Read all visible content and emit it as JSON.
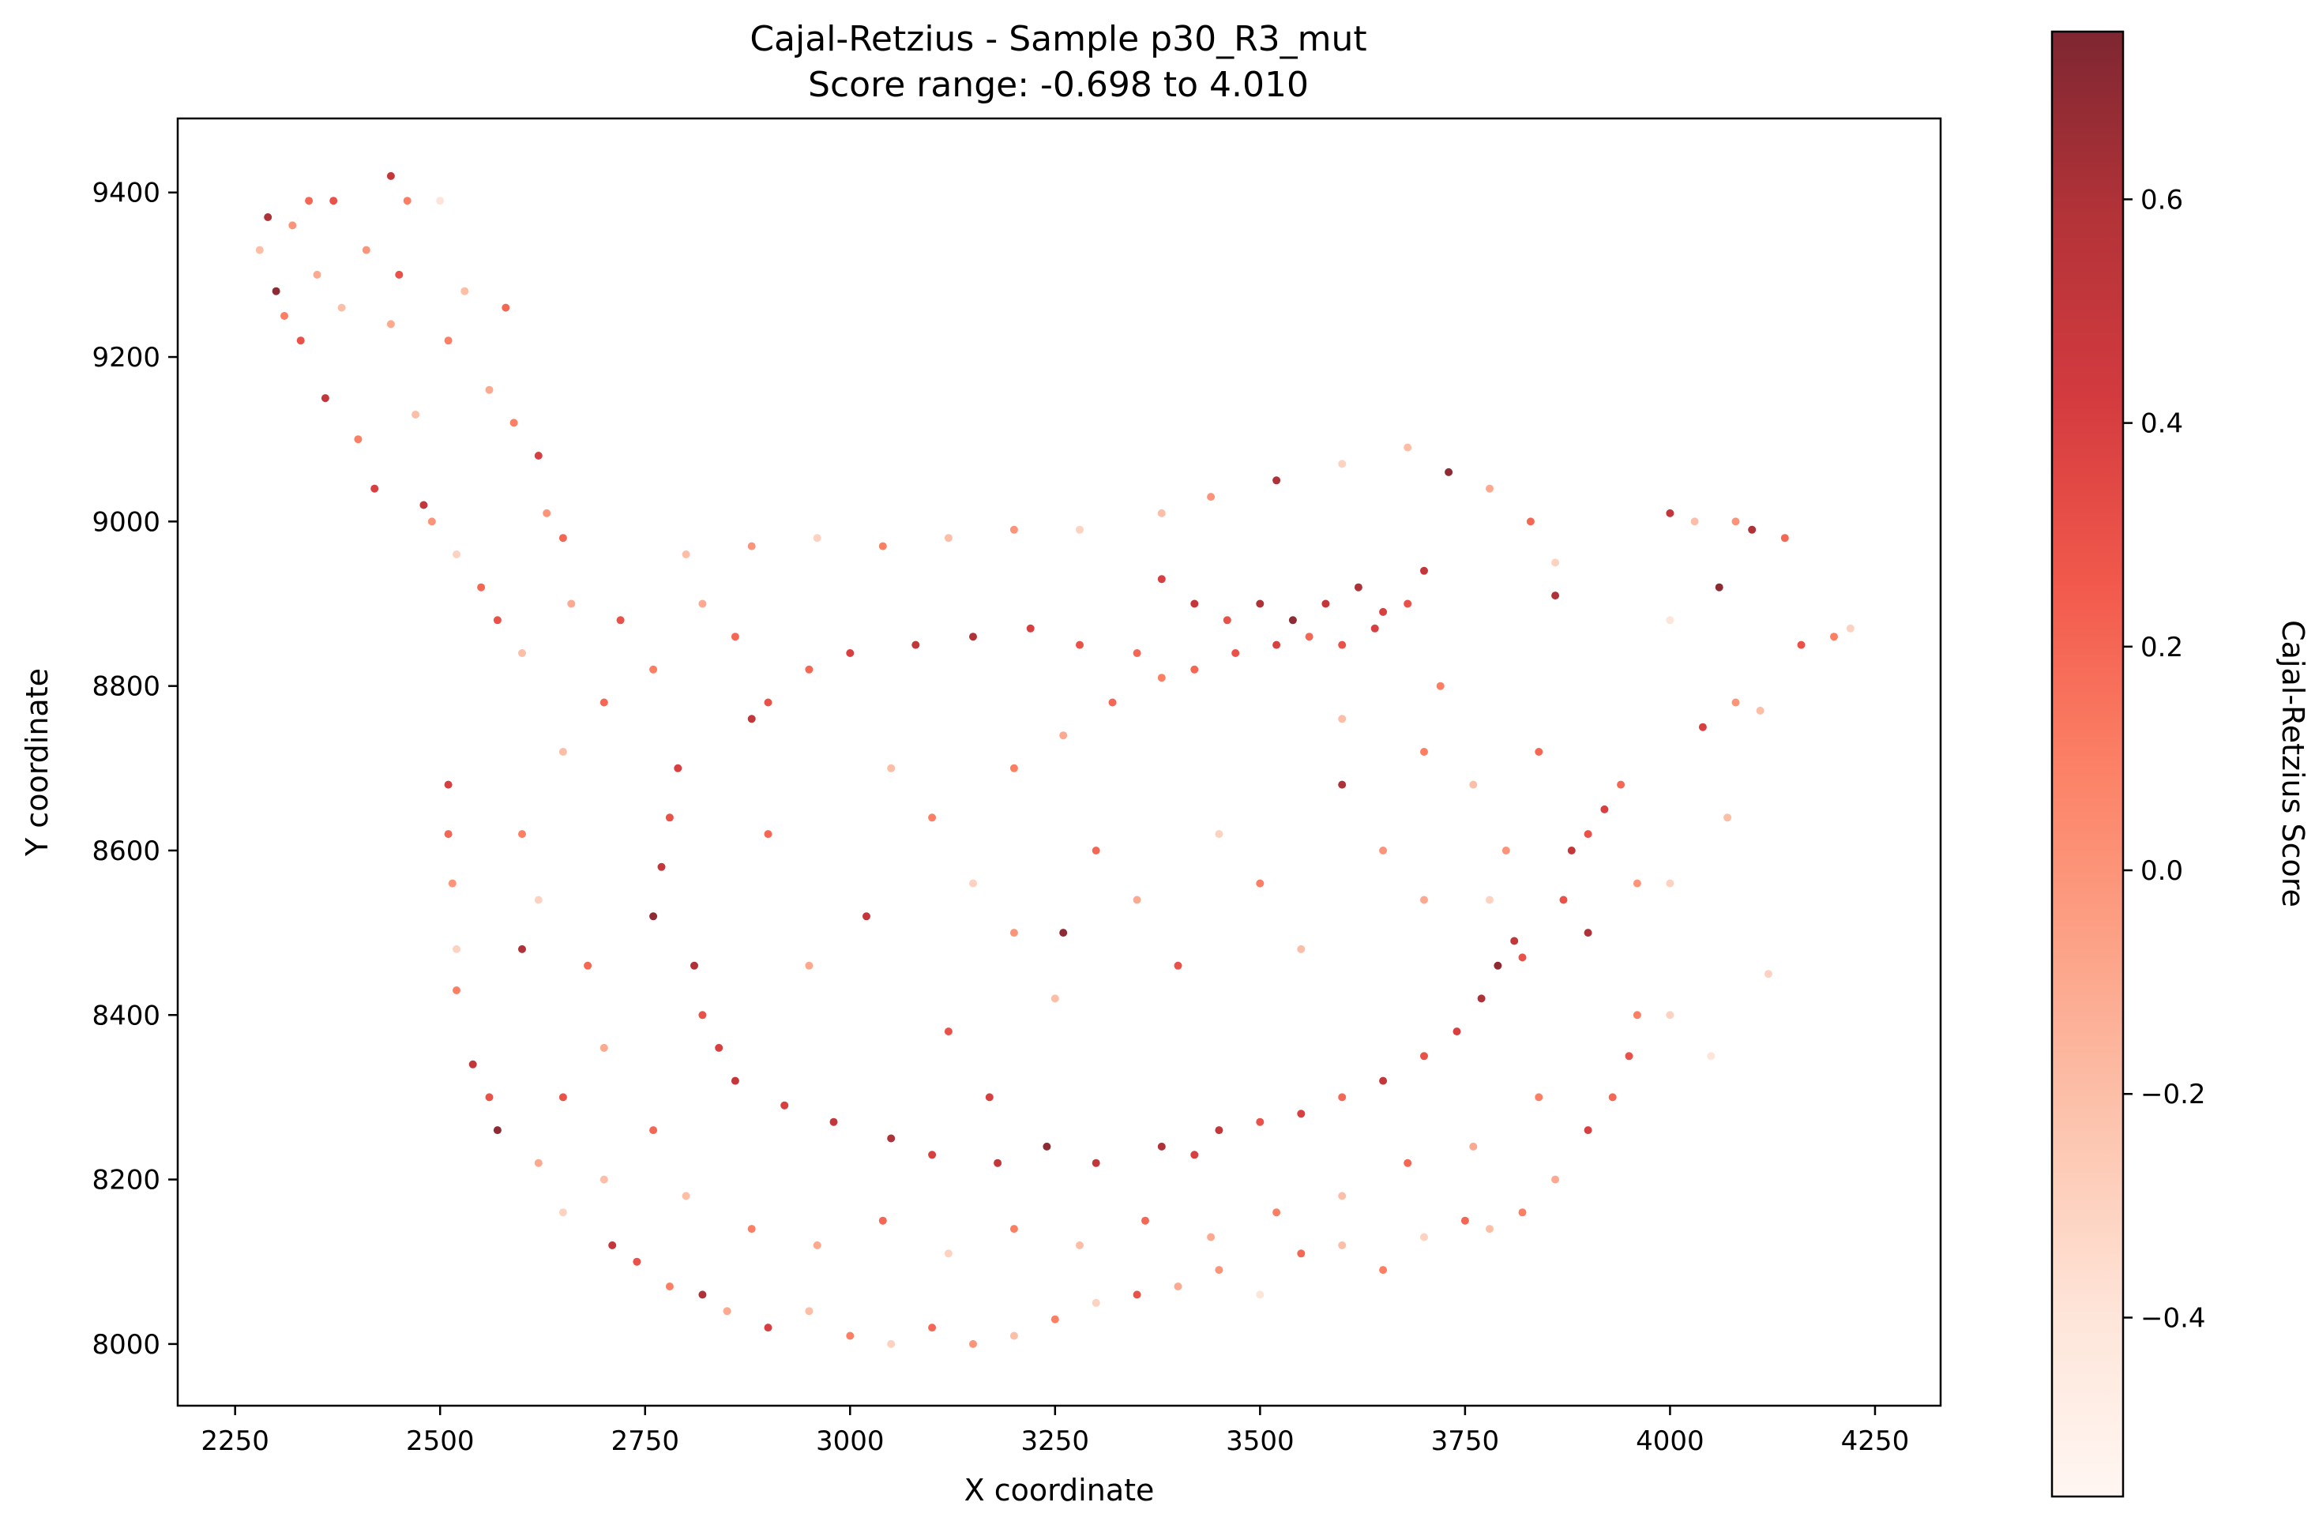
{
  "chart_data": {
    "type": "scatter",
    "title": "Cajal-Retzius - Sample p30_R3_mut",
    "subtitle": "Score range: -0.698 to 4.010",
    "xlabel": "X coordinate",
    "ylabel": "Y coordinate",
    "xlim": [
      2180,
      4330
    ],
    "ylim": [
      7925,
      9490
    ],
    "xticks": [
      2250,
      2500,
      2750,
      3000,
      3250,
      3500,
      3750,
      4000,
      4250
    ],
    "yticks": [
      8000,
      8200,
      8400,
      8600,
      8800,
      9000,
      9200,
      9400
    ],
    "grid": false,
    "colorbar": {
      "label": "Cajal-Retzius Score",
      "colormap": "Reds",
      "range": [
        -0.56,
        0.75
      ],
      "ticks": [
        -0.4,
        -0.2,
        0.0,
        0.2,
        0.4,
        0.6
      ],
      "tick_labels": [
        "−0.4",
        "−0.2",
        "0.0",
        "0.2",
        "0.4",
        "0.6"
      ],
      "colors": [
        "#fff5f0",
        "#fee0d2",
        "#fcbba1",
        "#fc9272",
        "#fb6a4a",
        "#ef3b2c",
        "#cb181d",
        "#a50f15",
        "#67000d"
      ]
    },
    "points": [
      [
        2280,
        9330,
        -0.2
      ],
      [
        2290,
        9370,
        0.6
      ],
      [
        2300,
        9280,
        0.7
      ],
      [
        2310,
        9250,
        0.1
      ],
      [
        2320,
        9360,
        0.0
      ],
      [
        2330,
        9220,
        0.3
      ],
      [
        2340,
        9390,
        0.2
      ],
      [
        2350,
        9300,
        -0.1
      ],
      [
        2360,
        9150,
        0.5
      ],
      [
        2370,
        9390,
        0.3
      ],
      [
        2380,
        9260,
        -0.2
      ],
      [
        2400,
        9100,
        0.1
      ],
      [
        2410,
        9330,
        0.0
      ],
      [
        2420,
        9040,
        0.4
      ],
      [
        2440,
        9420,
        0.5
      ],
      [
        2440,
        9240,
        -0.1
      ],
      [
        2450,
        9300,
        0.3
      ],
      [
        2460,
        9390,
        0.1
      ],
      [
        2470,
        9130,
        -0.2
      ],
      [
        2480,
        9020,
        0.5
      ],
      [
        2490,
        9000,
        0.0
      ],
      [
        2500,
        9390,
        -0.4
      ],
      [
        2510,
        9220,
        0.1
      ],
      [
        2520,
        8960,
        -0.3
      ],
      [
        2530,
        9280,
        -0.2
      ],
      [
        2550,
        8920,
        0.2
      ],
      [
        2560,
        9160,
        -0.1
      ],
      [
        2570,
        8880,
        0.3
      ],
      [
        2580,
        9260,
        0.2
      ],
      [
        2590,
        9120,
        0.1
      ],
      [
        2600,
        8840,
        -0.2
      ],
      [
        2620,
        9080,
        0.4
      ],
      [
        2630,
        9010,
        0.0
      ],
      [
        2650,
        8980,
        0.2
      ],
      [
        2660,
        8900,
        -0.1
      ],
      [
        2510,
        8680,
        0.4
      ],
      [
        2510,
        8620,
        0.2
      ],
      [
        2515,
        8560,
        0.0
      ],
      [
        2520,
        8480,
        -0.3
      ],
      [
        2520,
        8430,
        0.1
      ],
      [
        2540,
        8340,
        0.5
      ],
      [
        2560,
        8300,
        0.3
      ],
      [
        2570,
        8260,
        0.7
      ],
      [
        2600,
        8480,
        0.6
      ],
      [
        2620,
        8220,
        -0.1
      ],
      [
        2650,
        8160,
        -0.3
      ],
      [
        2700,
        8200,
        -0.2
      ],
      [
        2710,
        8120,
        0.5
      ],
      [
        2740,
        8100,
        0.3
      ],
      [
        2780,
        8070,
        0.1
      ],
      [
        2820,
        8060,
        0.6
      ],
      [
        2850,
        8040,
        -0.1
      ],
      [
        2900,
        8020,
        0.4
      ],
      [
        2950,
        8040,
        -0.2
      ],
      [
        3000,
        8010,
        0.1
      ],
      [
        3050,
        8000,
        -0.3
      ],
      [
        3100,
        8020,
        0.2
      ],
      [
        3150,
        8000,
        0.0
      ],
      [
        3200,
        8010,
        -0.2
      ],
      [
        3250,
        8030,
        0.1
      ],
      [
        3300,
        8050,
        -0.3
      ],
      [
        3350,
        8060,
        0.3
      ],
      [
        3400,
        8070,
        -0.1
      ],
      [
        3450,
        8090,
        0.0
      ],
      [
        3500,
        8060,
        -0.4
      ],
      [
        3550,
        8110,
        0.2
      ],
      [
        3600,
        8120,
        -0.2
      ],
      [
        3650,
        8090,
        0.1
      ],
      [
        3700,
        8130,
        -0.3
      ],
      [
        3750,
        8150,
        0.2
      ],
      [
        2760,
        8520,
        0.7
      ],
      [
        2770,
        8580,
        0.5
      ],
      [
        2780,
        8640,
        0.3
      ],
      [
        2790,
        8700,
        0.4
      ],
      [
        2810,
        8460,
        0.6
      ],
      [
        2820,
        8400,
        0.3
      ],
      [
        2840,
        8360,
        0.4
      ],
      [
        2860,
        8320,
        0.5
      ],
      [
        2880,
        8760,
        0.5
      ],
      [
        2900,
        8780,
        0.3
      ],
      [
        2920,
        8290,
        0.4
      ],
      [
        2950,
        8820,
        0.2
      ],
      [
        2980,
        8270,
        0.5
      ],
      [
        3000,
        8840,
        0.4
      ],
      [
        3050,
        8250,
        0.6
      ],
      [
        3080,
        8850,
        0.5
      ],
      [
        3100,
        8230,
        0.4
      ],
      [
        3150,
        8860,
        0.6
      ],
      [
        3180,
        8220,
        0.5
      ],
      [
        3220,
        8870,
        0.4
      ],
      [
        3240,
        8240,
        0.7
      ],
      [
        3280,
        8850,
        0.3
      ],
      [
        3300,
        8220,
        0.5
      ],
      [
        3350,
        8840,
        0.2
      ],
      [
        3380,
        8240,
        0.6
      ],
      [
        3420,
        8230,
        0.4
      ],
      [
        3450,
        8260,
        0.5
      ],
      [
        3500,
        8270,
        0.3
      ],
      [
        3550,
        8280,
        0.4
      ],
      [
        3600,
        8300,
        0.2
      ],
      [
        3650,
        8320,
        0.5
      ],
      [
        3700,
        8350,
        0.3
      ],
      [
        3740,
        8380,
        0.4
      ],
      [
        3770,
        8420,
        0.6
      ],
      [
        3790,
        8460,
        0.7
      ],
      [
        3810,
        8490,
        0.5
      ],
      [
        3820,
        8470,
        0.3
      ],
      [
        3380,
        8930,
        0.4
      ],
      [
        3420,
        8900,
        0.5
      ],
      [
        3460,
        8880,
        0.3
      ],
      [
        3500,
        8900,
        0.6
      ],
      [
        3540,
        8880,
        0.7
      ],
      [
        3580,
        8900,
        0.5
      ],
      [
        3620,
        8920,
        0.6
      ],
      [
        3650,
        8890,
        0.4
      ],
      [
        3680,
        8900,
        0.3
      ],
      [
        3700,
        8940,
        0.5
      ],
      [
        3420,
        8820,
        0.2
      ],
      [
        3470,
        8840,
        0.3
      ],
      [
        3520,
        8850,
        0.4
      ],
      [
        3560,
        8860,
        0.2
      ],
      [
        3600,
        8850,
        0.3
      ],
      [
        3640,
        8870,
        0.4
      ],
      [
        3380,
        8810,
        0.1
      ],
      [
        3320,
        8780,
        0.2
      ],
      [
        3260,
        8740,
        -0.1
      ],
      [
        3200,
        8700,
        0.1
      ],
      [
        3380,
        9010,
        -0.2
      ],
      [
        3440,
        9030,
        0.0
      ],
      [
        3520,
        9050,
        0.6
      ],
      [
        3600,
        9070,
        -0.3
      ],
      [
        3680,
        9090,
        -0.2
      ],
      [
        3730,
        9060,
        0.7
      ],
      [
        3780,
        9040,
        -0.1
      ],
      [
        3830,
        9000,
        0.2
      ],
      [
        3860,
        8950,
        -0.3
      ],
      [
        3860,
        8910,
        0.6
      ],
      [
        3050,
        8700,
        -0.2
      ],
      [
        3100,
        8640,
        0.1
      ],
      [
        3150,
        8560,
        -0.3
      ],
      [
        3200,
        8500,
        0.0
      ],
      [
        3250,
        8420,
        -0.2
      ],
      [
        3300,
        8600,
        0.2
      ],
      [
        3350,
        8540,
        -0.1
      ],
      [
        3400,
        8460,
        0.3
      ],
      [
        3450,
        8620,
        -0.3
      ],
      [
        3500,
        8560,
        0.1
      ],
      [
        3550,
        8480,
        -0.2
      ],
      [
        3600,
        8680,
        0.6
      ],
      [
        3650,
        8600,
        0.0
      ],
      [
        3700,
        8540,
        -0.1
      ],
      [
        3120,
        8380,
        0.3
      ],
      [
        3020,
        8520,
        0.5
      ],
      [
        2950,
        8460,
        -0.1
      ],
      [
        2900,
        8620,
        0.2
      ],
      [
        3170,
        8300,
        0.4
      ],
      [
        3260,
        8500,
        0.7
      ],
      [
        3880,
        8600,
        0.5
      ],
      [
        3900,
        8620,
        0.3
      ],
      [
        3920,
        8650,
        0.4
      ],
      [
        3940,
        8680,
        0.2
      ],
      [
        3870,
        8540,
        0.3
      ],
      [
        3900,
        8500,
        0.6
      ],
      [
        3960,
        8400,
        0.1
      ],
      [
        3950,
        8350,
        0.3
      ],
      [
        3930,
        8300,
        0.2
      ],
      [
        3900,
        8260,
        0.4
      ],
      [
        3860,
        8200,
        -0.1
      ],
      [
        3820,
        8160,
        0.1
      ],
      [
        3780,
        8140,
        -0.2
      ],
      [
        4000,
        8400,
        -0.3
      ],
      [
        3960,
        8560,
        0.0
      ],
      [
        4000,
        9010,
        0.5
      ],
      [
        4030,
        9000,
        -0.2
      ],
      [
        4080,
        9000,
        0.0
      ],
      [
        4100,
        8990,
        0.6
      ],
      [
        4140,
        8980,
        0.2
      ],
      [
        4060,
        8920,
        0.7
      ],
      [
        4040,
        8750,
        0.4
      ],
      [
        4080,
        8780,
        0.0
      ],
      [
        4110,
        8770,
        -0.2
      ],
      [
        4160,
        8850,
        0.3
      ],
      [
        4200,
        8860,
        0.1
      ],
      [
        4220,
        8870,
        -0.3
      ],
      [
        4000,
        8880,
        -0.4
      ],
      [
        4070,
        8640,
        -0.2
      ],
      [
        4120,
        8450,
        -0.3
      ],
      [
        4050,
        8350,
        -0.4
      ],
      [
        4000,
        8560,
        -0.3
      ],
      [
        2700,
        8780,
        0.2
      ],
      [
        2650,
        8720,
        -0.2
      ],
      [
        2600,
        8620,
        0.1
      ],
      [
        2620,
        8540,
        -0.3
      ],
      [
        2680,
        8460,
        0.2
      ],
      [
        2700,
        8360,
        -0.1
      ],
      [
        2650,
        8300,
        0.3
      ],
      [
        2760,
        8260,
        0.2
      ],
      [
        2800,
        8180,
        -0.2
      ],
      [
        2880,
        8140,
        0.1
      ],
      [
        2960,
        8120,
        -0.1
      ],
      [
        3040,
        8150,
        0.2
      ],
      [
        3120,
        8110,
        -0.3
      ],
      [
        3200,
        8140,
        0.1
      ],
      [
        3280,
        8120,
        -0.2
      ],
      [
        3360,
        8150,
        0.2
      ],
      [
        3440,
        8130,
        -0.1
      ],
      [
        3520,
        8160,
        0.1
      ],
      [
        3600,
        8180,
        -0.2
      ],
      [
        3680,
        8220,
        0.2
      ],
      [
        3760,
        8240,
        -0.1
      ],
      [
        3840,
        8300,
        0.1
      ],
      [
        2800,
        8960,
        -0.2
      ],
      [
        2880,
        8970,
        0.0
      ],
      [
        2960,
        8980,
        -0.3
      ],
      [
        3040,
        8970,
        0.1
      ],
      [
        3120,
        8980,
        -0.2
      ],
      [
        3200,
        8990,
        0.0
      ],
      [
        3280,
        8990,
        -0.3
      ],
      [
        2720,
        8880,
        0.3
      ],
      [
        2760,
        8820,
        0.1
      ],
      [
        2820,
        8900,
        -0.1
      ],
      [
        2860,
        8860,
        0.2
      ],
      [
        3600,
        8760,
        -0.2
      ],
      [
        3700,
        8720,
        0.1
      ],
      [
        3760,
        8680,
        -0.2
      ],
      [
        3800,
        8600,
        0.0
      ],
      [
        3780,
        8540,
        -0.3
      ],
      [
        3840,
        8720,
        0.2
      ],
      [
        3720,
        8800,
        0.1
      ]
    ]
  }
}
